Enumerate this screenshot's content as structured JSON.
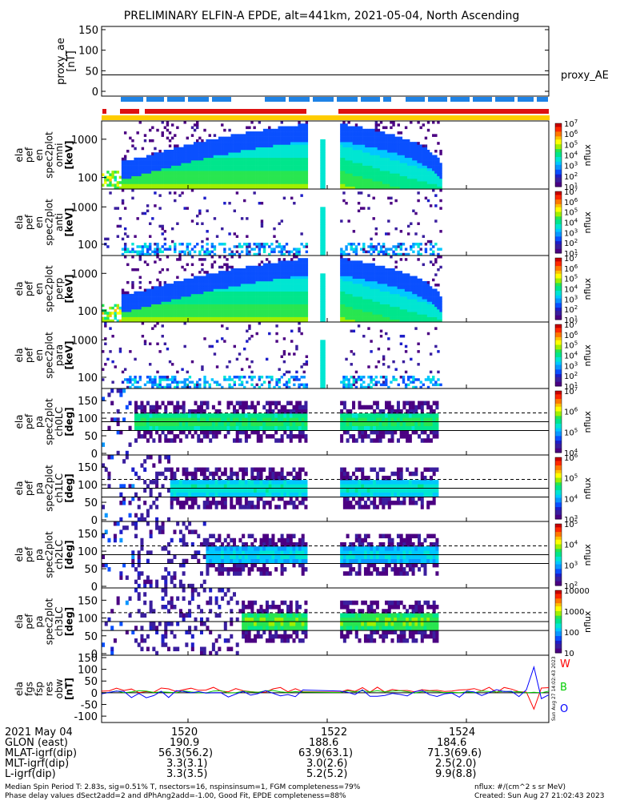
{
  "title": "PRELIMINARY ELFIN-A EPDE, alt=441km, 2021-05-04, North Ascending",
  "created_vertical": "Sun Aug 27 14:02:43 2023",
  "colors": {
    "blue_bar": "#1e82e6",
    "red_bar": "#dd1111",
    "yellow_bar": "#ffcc00"
  },
  "panels": [
    {
      "id": "proxy_ae",
      "ylabel": [
        "proxy_ae",
        "[nT]"
      ],
      "right_label": "proxy_AE",
      "ticks": [
        "150",
        "100",
        "50",
        "0"
      ]
    },
    {
      "id": "en_omni",
      "ylabel": [
        "ela",
        "pef",
        "en",
        "spec2plot",
        "omni",
        "[keV]"
      ],
      "ticks": [
        "1000",
        "100"
      ],
      "zlabel": "nflux",
      "zticks": [
        "10^7",
        "10^6",
        "10^5",
        "10^4",
        "10^3",
        "10^2",
        "10^1"
      ]
    },
    {
      "id": "en_anti",
      "ylabel": [
        "ela",
        "pef",
        "en",
        "spec2plot",
        "anti",
        "[keV]"
      ],
      "ticks": [
        "1000",
        "100"
      ],
      "zlabel": "nflux",
      "zticks": [
        "10^7",
        "10^6",
        "10^5",
        "10^4",
        "10^3",
        "10^2",
        "10^1"
      ]
    },
    {
      "id": "en_perp",
      "ylabel": [
        "ela",
        "pef",
        "en",
        "spec2plot",
        "perp",
        "[keV]"
      ],
      "ticks": [
        "1000",
        "100"
      ],
      "zlabel": "nflux",
      "zticks": [
        "10^7",
        "10^6",
        "10^5",
        "10^4",
        "10^3",
        "10^2",
        "10^1"
      ]
    },
    {
      "id": "en_para",
      "ylabel": [
        "ela",
        "pef",
        "en",
        "spec2plot",
        "para",
        "[keV]"
      ],
      "ticks": [
        "1000",
        "100"
      ],
      "zlabel": "nflux",
      "zticks": [
        "10^7",
        "10^6",
        "10^5",
        "10^4",
        "10^3",
        "10^2",
        "10^1"
      ]
    },
    {
      "id": "pa_ch0",
      "ylabel": [
        "ela",
        "pef",
        "pa",
        "spec2plot",
        "ch0LC",
        "[deg]"
      ],
      "ticks": [
        "150",
        "100",
        "50",
        "0"
      ],
      "zlabel": "nflux",
      "zticks": [
        "10^7",
        "10^6",
        "10^5",
        "10^4"
      ]
    },
    {
      "id": "pa_ch1",
      "ylabel": [
        "ela",
        "pef",
        "pa",
        "spec2plot",
        "ch1LC",
        "[deg]"
      ],
      "ticks": [
        "150",
        "100",
        "50",
        "0"
      ],
      "zlabel": "nflux",
      "zticks": [
        "10^6",
        "10^5",
        "10^4",
        "10^3"
      ]
    },
    {
      "id": "pa_ch2",
      "ylabel": [
        "ela",
        "pef",
        "pa",
        "spec2plot",
        "ch2LC",
        "[deg]"
      ],
      "ticks": [
        "150",
        "100",
        "50",
        "0"
      ],
      "zlabel": "nflux",
      "zticks": [
        "10^5",
        "10^4",
        "10^3",
        "10^2"
      ]
    },
    {
      "id": "pa_ch3",
      "ylabel": [
        "ela",
        "pef",
        "pa",
        "spec2plot",
        "ch3LC",
        "[deg]"
      ],
      "ticks": [
        "150",
        "100",
        "50",
        "0"
      ],
      "zlabel": "nflux",
      "zticks": [
        "10000",
        "1000",
        "100",
        "10"
      ]
    },
    {
      "id": "fgs",
      "ylabel": [
        "ela",
        "fgs",
        "fsp",
        "res",
        "obw",
        "[nT]"
      ],
      "ticks": [
        "150",
        "100",
        "50",
        "0",
        "-50",
        "-100"
      ],
      "legend": [
        "W",
        "B",
        "O"
      ]
    }
  ],
  "chart_data": [
    {
      "type": "line",
      "title": "PRELIMINARY ELFIN-A EPDE, alt=441km, 2021-05-04, North Ascending",
      "ylabel": "proxy_ae [nT]",
      "ylim": [
        -10,
        155
      ],
      "series": [
        {
          "name": "proxy_AE",
          "values": [
            40,
            40
          ]
        }
      ]
    },
    {
      "type": "heatmap",
      "ylabel": "ela pef en spec2plot omni [keV]",
      "yscale": "log",
      "ylim": [
        50,
        3000
      ],
      "zlabel": "nflux",
      "zscale": "log",
      "zlim": [
        10,
        10000000.0
      ]
    },
    {
      "type": "heatmap",
      "ylabel": "ela pef en spec2plot anti [keV]",
      "yscale": "log",
      "ylim": [
        50,
        3000
      ],
      "zlabel": "nflux",
      "zscale": "log",
      "zlim": [
        10,
        10000000.0
      ]
    },
    {
      "type": "heatmap",
      "ylabel": "ela pef en spec2plot perp [keV]",
      "yscale": "log",
      "ylim": [
        50,
        3000
      ],
      "zlabel": "nflux",
      "zscale": "log",
      "zlim": [
        10,
        10000000.0
      ]
    },
    {
      "type": "heatmap",
      "ylabel": "ela pef en spec2plot para [keV]",
      "yscale": "log",
      "ylim": [
        50,
        3000
      ],
      "zlabel": "nflux",
      "zscale": "log",
      "zlim": [
        10,
        10000000.0
      ]
    },
    {
      "type": "heatmap",
      "ylabel": "ela pef pa spec2plot ch0LC [deg]",
      "ylim": [
        0,
        180
      ],
      "zlabel": "nflux",
      "zscale": "log",
      "zlim": [
        10000.0,
        10000000.0
      ]
    },
    {
      "type": "heatmap",
      "ylabel": "ela pef pa spec2plot ch1LC [deg]",
      "ylim": [
        0,
        180
      ],
      "zlabel": "nflux",
      "zscale": "log",
      "zlim": [
        1000.0,
        1000000.0
      ]
    },
    {
      "type": "heatmap",
      "ylabel": "ela pef pa spec2plot ch2LC [deg]",
      "ylim": [
        0,
        180
      ],
      "zlabel": "nflux",
      "zscale": "log",
      "zlim": [
        100.0,
        100000.0
      ]
    },
    {
      "type": "heatmap",
      "ylabel": "ela pef pa spec2plot ch3LC [deg]",
      "ylim": [
        0,
        180
      ],
      "zlabel": "nflux",
      "zscale": "log",
      "zlim": [
        10,
        10000
      ]
    },
    {
      "type": "line",
      "ylabel": "ela fgs fsp res obw [nT]",
      "ylim": [
        -110,
        150
      ],
      "series": [
        {
          "name": "W",
          "color": "#ff0000"
        },
        {
          "name": "B",
          "color": "#00cc00"
        },
        {
          "name": "O",
          "color": "#0000ff"
        }
      ]
    }
  ],
  "x_axis": {
    "ticks": [
      "1520",
      "1522",
      "1524"
    ],
    "rows": [
      {
        "label": "2021 May 04",
        "values": [
          "1520",
          "1522",
          "1524"
        ]
      },
      {
        "label": "GLON (east)",
        "values": [
          "190.9",
          "188.6",
          "184.6"
        ]
      },
      {
        "label": "MLAT-igrf(dip)",
        "values": [
          "56.3(56.2)",
          "63.9(63.1)",
          "71.3(69.6)"
        ]
      },
      {
        "label": "MLT-igrf(dip)",
        "values": [
          "3.3(3.1)",
          "3.0(2.6)",
          "2.5(2.0)"
        ]
      },
      {
        "label": "L-igrf(dip)",
        "values": [
          "3.3(3.5)",
          "5.2(5.2)",
          "9.9(8.8)"
        ]
      }
    ]
  },
  "footer": {
    "line1_left": "Median Spin Period T: 2.83s, sig=0.51% T, nsectors=16, nspinsinsum=1, FGM completeness=79%",
    "line2_left": "Phase delay values dSect2add=2 and dPhAng2add=-1.00, Good Fit, EPDE completeness=88%",
    "line1_right": "nflux: #/(cm^2 s sr MeV)",
    "line2_right": "Created: Sun Aug 27 21:02:43 2023"
  }
}
